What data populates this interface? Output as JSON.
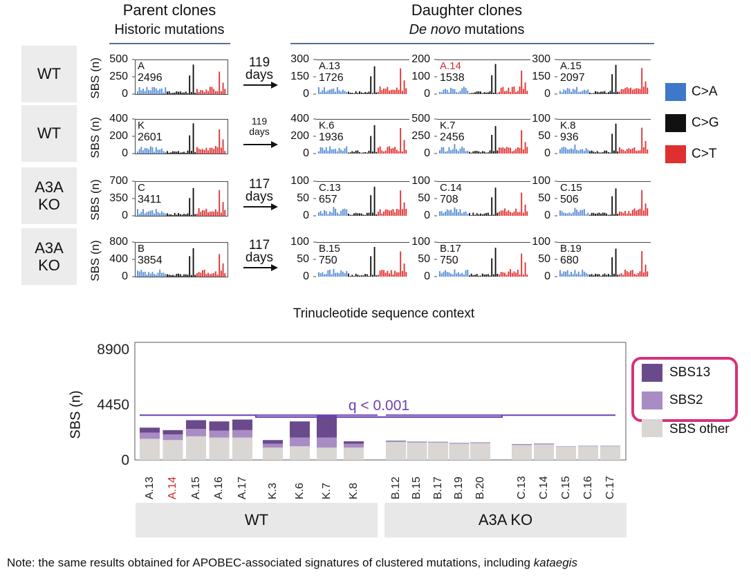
{
  "header": {
    "parent_title": "Parent clones",
    "parent_subtitle": "Historic mutations",
    "daughter_title": "Daughter clones",
    "daughter_subtitle_italic": "De novo",
    "daughter_subtitle_rest": " mutations"
  },
  "mini_ylabel": "SBS (n)",
  "x_context_label": "Trinucleotide sequence context",
  "legend_top": [
    {
      "label": "C>A",
      "color": "#3d78c9"
    },
    {
      "label": "C>G",
      "color": "#111111"
    },
    {
      "label": "C>T",
      "color": "#e02f2f"
    }
  ],
  "colors": {
    "CA": "#5b8fd6",
    "CG": "#111111",
    "CT": "#e03434"
  },
  "rows": [
    {
      "genotype": "WT",
      "interval_value": "119",
      "interval_unit": "days",
      "interval_small": false,
      "parent": {
        "name": "A",
        "total": "2496",
        "ymax": 500,
        "ticks": [
          "500",
          "250",
          "0"
        ],
        "name_red": false
      },
      "daughters": [
        {
          "name": "A.13",
          "total": "1726",
          "ymax": 300,
          "ticks": [
            "300",
            "150",
            "0"
          ],
          "name_red": false
        },
        {
          "name": "A.14",
          "total": "1538",
          "ymax": 200,
          "ticks": [
            "200",
            "100",
            "0"
          ],
          "name_red": true
        },
        {
          "name": "A.15",
          "total": "2097",
          "ymax": 300,
          "ticks": [
            "300",
            "150",
            "0"
          ],
          "name_red": false
        }
      ]
    },
    {
      "genotype": "WT",
      "interval_value": "119",
      "interval_unit": "days",
      "interval_small": true,
      "parent": {
        "name": "K",
        "total": "2601",
        "ymax": 400,
        "ticks": [
          "400",
          "200",
          "0"
        ],
        "name_red": false
      },
      "daughters": [
        {
          "name": "K.6",
          "total": "1936",
          "ymax": 400,
          "ticks": [
            "400",
            "200",
            "0"
          ],
          "name_red": false
        },
        {
          "name": "K.7",
          "total": "2456",
          "ymax": 500,
          "ticks": [
            "500",
            "250",
            "0"
          ],
          "name_red": false
        },
        {
          "name": "K.8",
          "total": "936",
          "ymax": 100,
          "ticks": [
            "100",
            "50",
            "0"
          ],
          "name_red": false
        }
      ]
    },
    {
      "genotype": "A3A KO",
      "interval_value": "117",
      "interval_unit": "days",
      "interval_small": false,
      "parent": {
        "name": "C",
        "total": "3411",
        "ymax": 700,
        "ticks": [
          "700",
          "350",
          "0"
        ],
        "name_red": false
      },
      "daughters": [
        {
          "name": "C.13",
          "total": "657",
          "ymax": 100,
          "ticks": [
            "100",
            "50",
            "0"
          ],
          "name_red": false
        },
        {
          "name": "C.14",
          "total": "708",
          "ymax": 100,
          "ticks": [
            "100",
            "50",
            "0"
          ],
          "name_red": false
        },
        {
          "name": "C.15",
          "total": "506",
          "ymax": 100,
          "ticks": [
            "100",
            "50",
            "0"
          ],
          "name_red": false
        }
      ]
    },
    {
      "genotype": "A3A KO",
      "interval_value": "117",
      "interval_unit": "days",
      "interval_small": false,
      "parent": {
        "name": "B",
        "total": "3854",
        "ymax": 800,
        "ticks": [
          "800",
          "400",
          "0"
        ],
        "name_red": false
      },
      "daughters": [
        {
          "name": "B.15",
          "total": "750",
          "ymax": 100,
          "ticks": [
            "100",
            "50",
            "0"
          ],
          "name_red": false
        },
        {
          "name": "B.17",
          "total": "750",
          "ymax": 100,
          "ticks": [
            "100",
            "50",
            "0"
          ],
          "name_red": false
        },
        {
          "name": "B.19",
          "total": "680",
          "ymax": 100,
          "ticks": [
            "100",
            "50",
            "0"
          ],
          "name_red": false
        }
      ]
    }
  ],
  "chart_data": {
    "type": "bar",
    "stacked": true,
    "ylabel": "SBS (n)",
    "yticks": [
      "8900",
      "4450",
      "0"
    ],
    "ylim": [
      0,
      8900
    ],
    "categories": [
      "A.13",
      "A.14",
      "A.15",
      "A.16",
      "A.17",
      "K.3",
      "K.6",
      "K.7",
      "K.8",
      "B.12",
      "B.15",
      "B.17",
      "B.19",
      "B.20",
      "C.13",
      "C.14",
      "C.15",
      "C.16",
      "C.17"
    ],
    "highlight_category": "A.14",
    "series": [
      {
        "name": "SBS other",
        "color": "#d9d6d3",
        "values": [
          1700,
          1600,
          1900,
          1800,
          1800,
          1000,
          1100,
          1000,
          1000,
          1450,
          1400,
          1400,
          1300,
          1350,
          1200,
          1250,
          1050,
          1100,
          1100
        ]
      },
      {
        "name": "SBS2",
        "color": "#a98cc4",
        "values": [
          500,
          450,
          600,
          550,
          600,
          300,
          700,
          800,
          300,
          60,
          40,
          30,
          30,
          30,
          40,
          30,
          20,
          20,
          20
        ]
      },
      {
        "name": "SBS13",
        "color": "#6a4a8c",
        "values": [
          400,
          350,
          700,
          750,
          850,
          300,
          1300,
          1800,
          200,
          40,
          30,
          30,
          30,
          30,
          30,
          30,
          20,
          20,
          20
        ]
      }
    ],
    "groups": [
      {
        "label": "WT",
        "members": [
          "A.13",
          "A.14",
          "A.15",
          "A.16",
          "A.17",
          "K.3",
          "K.6",
          "K.7",
          "K.8"
        ]
      },
      {
        "label": "A3A KO",
        "members": [
          "B.12",
          "B.15",
          "B.17",
          "B.19",
          "B.20",
          "C.13",
          "C.14",
          "C.15",
          "C.16",
          "C.17"
        ]
      }
    ],
    "annotation": "q < 0.001",
    "legend": [
      "SBS13",
      "SBS2",
      "SBS other"
    ],
    "legend_placement": "right"
  },
  "note": {
    "text": "Note: the same results obtained for APOBEC-associated signatures of clustered mutations, including ",
    "italic": "kataegis"
  }
}
